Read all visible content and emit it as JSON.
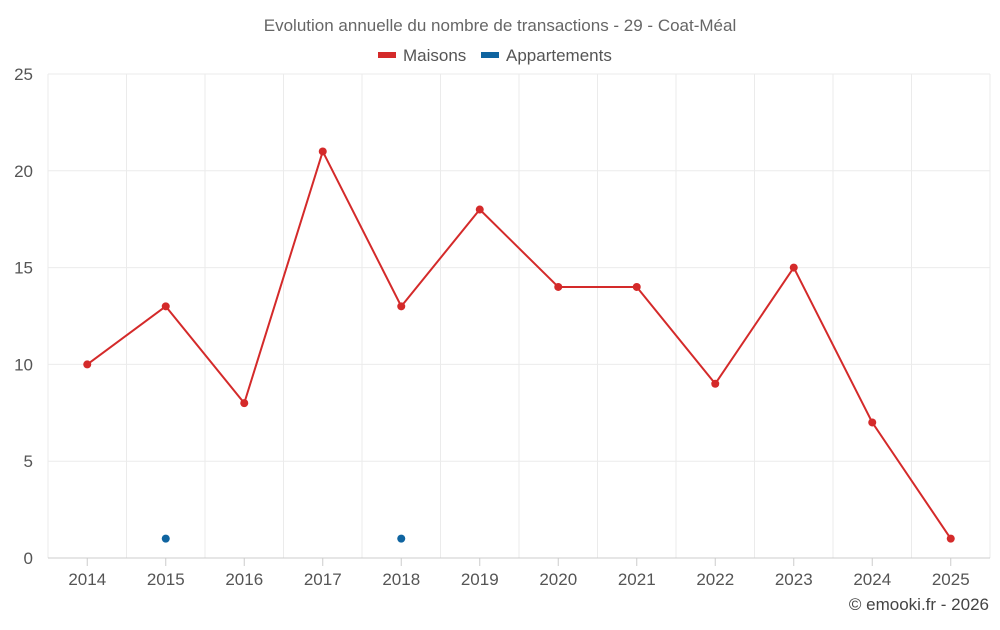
{
  "chart_data": {
    "type": "line",
    "title": "Evolution annuelle du nombre de transactions - 29 - Coat-Méal",
    "categories": [
      "2014",
      "2015",
      "2016",
      "2017",
      "2018",
      "2019",
      "2020",
      "2021",
      "2022",
      "2023",
      "2024",
      "2025"
    ],
    "series": [
      {
        "name": "Maisons",
        "color": "#d42a2a",
        "values": [
          10,
          13,
          8,
          21,
          13,
          18,
          14,
          14,
          9,
          15,
          7,
          1
        ],
        "connected": true
      },
      {
        "name": "Appartements",
        "color": "#0f64a0",
        "values": [
          null,
          1,
          null,
          null,
          1,
          null,
          null,
          null,
          null,
          null,
          null,
          null
        ],
        "connected": false
      }
    ],
    "yticks": [
      "0",
      "5",
      "10",
      "15",
      "20",
      "25"
    ],
    "ylim": [
      0,
      25
    ],
    "grid": true,
    "legend_position": "top-center",
    "xlabel": "",
    "ylabel": ""
  },
  "credit": "© emooki.fr - 2026"
}
